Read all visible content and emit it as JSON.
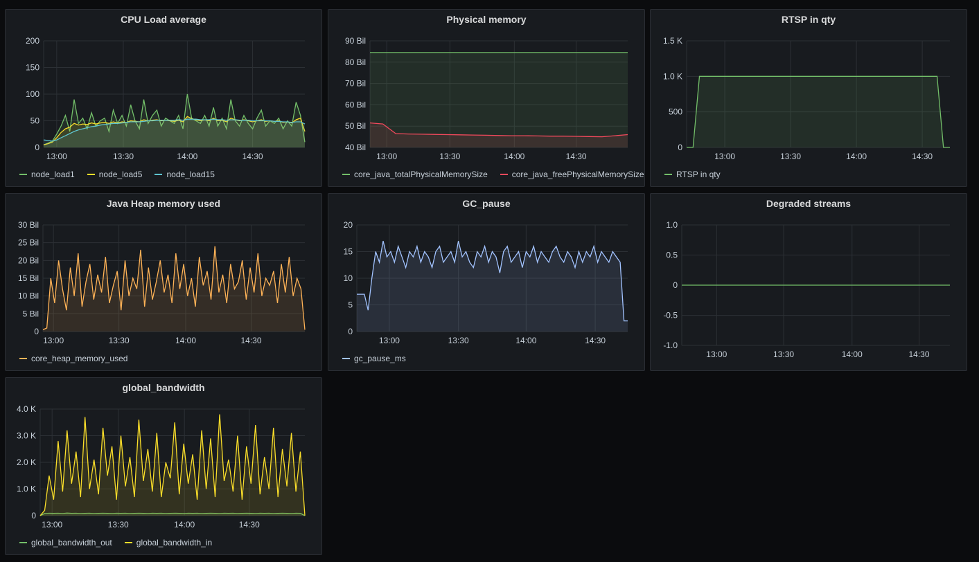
{
  "colors": {
    "green": "#73bf69",
    "yellow": "#fade2a",
    "orange": "#ffb357",
    "cyan": "#5ec4cf",
    "red": "#f2495c",
    "lightblue": "#a2c3ff",
    "darkred_fill": "#3c2323",
    "grid": "#2c3035"
  },
  "panels": [
    {
      "id": "cpu",
      "title": "CPU Load average",
      "chart_data": {
        "type": "line",
        "x_ticks": [
          "13:00",
          "13:30",
          "14:00",
          "14:30"
        ],
        "y_ticks": [
          "0",
          "50",
          "100",
          "150",
          "200"
        ],
        "ylim": [
          0,
          200
        ],
        "series": [
          {
            "name": "node_load1",
            "color": "#73bf69",
            "values": [
              5,
              8,
              12,
              25,
              40,
              60,
              30,
              90,
              45,
              55,
              35,
              65,
              40,
              50,
              55,
              30,
              70,
              45,
              60,
              40,
              80,
              50,
              35,
              90,
              45,
              60,
              70,
              40,
              55,
              50,
              45,
              60,
              35,
              100,
              55,
              50,
              45,
              60,
              40,
              75,
              40,
              55,
              35,
              90,
              50,
              40,
              60,
              45,
              35,
              55,
              70,
              40,
              50,
              45,
              55,
              35,
              50,
              40,
              85,
              60,
              10
            ]
          },
          {
            "name": "node_load5",
            "color": "#fade2a",
            "values": [
              5,
              7,
              10,
              18,
              28,
              35,
              38,
              45,
              42,
              44,
              43,
              46,
              44,
              46,
              47,
              45,
              48,
              46,
              48,
              47,
              50,
              49,
              48,
              52,
              50,
              51,
              52,
              50,
              51,
              50,
              49,
              51,
              48,
              58,
              54,
              52,
              50,
              52,
              50,
              55,
              50,
              51,
              48,
              55,
              52,
              50,
              52,
              50,
              48,
              50,
              52,
              49,
              50,
              49,
              50,
              47,
              48,
              46,
              52,
              55,
              30
            ]
          },
          {
            "name": "node_load15",
            "color": "#5ec4cf",
            "values": [
              14,
              13,
              12,
              14,
              18,
              22,
              26,
              30,
              33,
              35,
              37,
              39,
              40,
              42,
              43,
              44,
              45,
              45,
              46,
              47,
              48,
              48,
              48,
              49,
              50,
              50,
              51,
              51,
              51,
              51,
              51,
              52,
              51,
              53,
              53,
              53,
              52,
              52,
              52,
              53,
              52,
              52,
              51,
              52,
              52,
              51,
              51,
              51,
              50,
              50,
              50,
              50,
              50,
              49,
              49,
              48,
              48,
              47,
              48,
              48,
              44
            ]
          }
        ]
      }
    },
    {
      "id": "mem",
      "title": "Physical memory",
      "chart_data": {
        "type": "area",
        "x_ticks": [
          "13:00",
          "13:30",
          "14:00",
          "14:30"
        ],
        "y_ticks": [
          "40 Bil",
          "50 Bil",
          "60 Bil",
          "70 Bil",
          "80 Bil",
          "90 Bil"
        ],
        "ylim": [
          40,
          90
        ],
        "series": [
          {
            "name": "core_java_totalPhysicalMemorySize",
            "color": "#73bf69",
            "values": [
              84.5,
              84.5,
              84.5,
              84.5,
              84.5,
              84.5,
              84.5,
              84.5,
              84.5,
              84.5,
              84.5,
              84.5,
              84.5,
              84.5,
              84.5,
              84.5,
              84.5,
              84.5,
              84.5,
              84.5,
              84.5
            ]
          },
          {
            "name": "core_java_freePhysicalMemorySize",
            "color": "#f2495c",
            "values": [
              51.5,
              51,
              46.5,
              46.3,
              46.2,
              46.1,
              46,
              45.9,
              45.8,
              45.7,
              45.6,
              45.5,
              45.5,
              45.4,
              45.3,
              45.3,
              45.2,
              45.1,
              45,
              45.5,
              46
            ]
          }
        ]
      }
    },
    {
      "id": "rtsp",
      "title": "RTSP in qty",
      "chart_data": {
        "type": "area",
        "x_ticks": [
          "13:00",
          "13:30",
          "14:00",
          "14:30"
        ],
        "y_ticks": [
          "0",
          "500",
          "1.0 K",
          "1.5 K"
        ],
        "ylim": [
          0,
          1500
        ],
        "series": [
          {
            "name": "RTSP in qty",
            "color": "#73bf69",
            "values": [
              0,
              0,
              1000,
              1000,
              1000,
              1000,
              1000,
              1000,
              1000,
              1000,
              1000,
              1000,
              1000,
              1000,
              1000,
              1000,
              1000,
              1000,
              1000,
              1000,
              1000,
              1000,
              1000,
              1000,
              1000,
              1000,
              1000,
              1000,
              1000,
              1000,
              1000,
              1000,
              1000,
              1000,
              1000,
              1000,
              1000,
              1000,
              1000,
              1000,
              0,
              0
            ]
          }
        ]
      }
    },
    {
      "id": "heap",
      "title": "Java Heap memory used",
      "chart_data": {
        "type": "area",
        "x_ticks": [
          "13:00",
          "13:30",
          "14:00",
          "14:30"
        ],
        "y_ticks": [
          "0",
          "5 Bil",
          "10 Bil",
          "15 Bil",
          "20 Bil",
          "25 Bil",
          "30 Bil"
        ],
        "ylim": [
          0,
          30
        ],
        "series": [
          {
            "name": "core_heap_memory_used",
            "color": "#ffb357",
            "values": [
              0.5,
              1,
              15,
              8,
              20,
              12,
              6,
              18,
              10,
              22,
              7,
              14,
              19,
              9,
              16,
              11,
              21,
              8,
              13,
              17,
              6,
              20,
              10,
              15,
              12,
              23,
              7,
              18,
              9,
              14,
              20,
              11,
              16,
              8,
              22,
              12,
              19,
              10,
              15,
              7,
              21,
              13,
              17,
              9,
              24,
              11,
              16,
              8,
              19,
              12,
              14,
              20,
              9,
              18,
              11,
              22,
              10,
              15,
              13,
              17,
              8,
              19,
              11,
              21,
              10,
              15,
              12,
              0.5
            ]
          }
        ]
      }
    },
    {
      "id": "gc",
      "title": "GC_pause",
      "chart_data": {
        "type": "area",
        "x_ticks": [
          "13:00",
          "13:30",
          "14:00",
          "14:30"
        ],
        "y_ticks": [
          "0",
          "5",
          "10",
          "15",
          "20"
        ],
        "ylim": [
          0,
          20
        ],
        "series": [
          {
            "name": "gc_pause_ms",
            "color": "#a2c3ff",
            "values": [
              7,
              7,
              7,
              4,
              10,
              15,
              13,
              17,
              14,
              15,
              13,
              16,
              14,
              12,
              15,
              14,
              16,
              13,
              15,
              14,
              12,
              15,
              16,
              13,
              14,
              15,
              13,
              17,
              14,
              15,
              13,
              12,
              15,
              14,
              16,
              13,
              15,
              14,
              11,
              15,
              16,
              13,
              14,
              15,
              12,
              15,
              14,
              16,
              13,
              15,
              14,
              13,
              15,
              16,
              14,
              13,
              15,
              14,
              12,
              15,
              13,
              15,
              14,
              16,
              13,
              15,
              14,
              13,
              15,
              14,
              13,
              2,
              2
            ]
          }
        ]
      }
    },
    {
      "id": "degraded",
      "title": "Degraded streams",
      "chart_data": {
        "type": "line",
        "x_ticks": [
          "13:00",
          "13:30",
          "14:00",
          "14:30"
        ],
        "y_ticks": [
          "-1.0",
          "-0.5",
          "0",
          "0.5",
          "1.0"
        ],
        "ylim": [
          -1,
          1
        ],
        "series": [
          {
            "color": "#73bf69",
            "values": [
              0,
              0,
              0,
              0,
              0,
              0,
              0,
              0,
              0,
              0
            ]
          }
        ]
      }
    },
    {
      "id": "bw",
      "title": "global_bandwidth",
      "chart_data": {
        "type": "area",
        "x_ticks": [
          "13:00",
          "13:30",
          "14:00",
          "14:30"
        ],
        "y_ticks": [
          "0",
          "1.0 K",
          "2.0 K",
          "3.0 K",
          "4.0 K"
        ],
        "ylim": [
          0,
          4000
        ],
        "series": [
          {
            "name": "global_bandwidth_out",
            "color": "#73bf69",
            "values": [
              0,
              80,
              90,
              85,
              90,
              80,
              95,
              85,
              90,
              80,
              85,
              90,
              80,
              85,
              90,
              85,
              80,
              90,
              85,
              90,
              80,
              85,
              90,
              85,
              80,
              90,
              85,
              90,
              80,
              85,
              90,
              85,
              80,
              90,
              85,
              90,
              80,
              85,
              90,
              85,
              80,
              90,
              85,
              90,
              80,
              85,
              90,
              85,
              80,
              90,
              85,
              90,
              80,
              85,
              90,
              85,
              80,
              90,
              85,
              0
            ]
          },
          {
            "name": "global_bandwidth_in",
            "color": "#fade2a",
            "values": [
              0,
              200,
              1500,
              600,
              2800,
              900,
              3200,
              1200,
              2400,
              700,
              3700,
              1000,
              2100,
              800,
              3300,
              1500,
              2600,
              600,
              3000,
              1100,
              2200,
              700,
              3600,
              1300,
              2500,
              900,
              3100,
              700,
              2000,
              1400,
              3500,
              800,
              2700,
              1200,
              2300,
              600,
              3200,
              1000,
              2900,
              700,
              3800,
              1300,
              2100,
              900,
              3000,
              600,
              2600,
              1200,
              3400,
              800,
              2200,
              1000,
              3300,
              700,
              2500,
              1100,
              3100,
              900,
              2400,
              0
            ]
          }
        ]
      }
    }
  ]
}
